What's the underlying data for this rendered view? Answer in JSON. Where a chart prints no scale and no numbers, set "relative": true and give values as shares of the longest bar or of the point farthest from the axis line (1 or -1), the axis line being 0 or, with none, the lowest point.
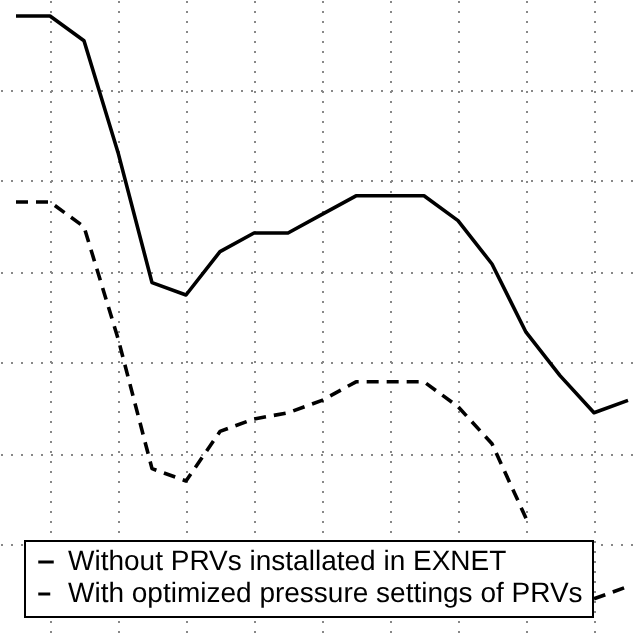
{
  "chart_data": {
    "type": "line",
    "relative": true,
    "grid": true,
    "legend": "bottom left",
    "tick_labels": false,
    "categories": [
      null,
      null,
      null,
      null,
      null,
      null,
      null,
      null,
      null,
      null,
      null,
      null,
      null,
      null,
      null,
      null,
      null,
      null,
      null
    ],
    "series": [
      {
        "name": "Without PRVs installated in EXNET",
        "color": "#000000",
        "line_style": "solid",
        "values": [
          1.0,
          1.0,
          0.96,
          0.78,
          0.57,
          0.55,
          0.62,
          0.65,
          0.65,
          0.68,
          0.71,
          0.71,
          0.71,
          0.67,
          0.6,
          0.49,
          0.42,
          0.36,
          0.38
        ]
      },
      {
        "name": "With optimized pressure settings of PRVs",
        "color": "#000000",
        "line_style": "dashed",
        "values": [
          0.7,
          0.7,
          0.66,
          0.48,
          0.27,
          0.25,
          0.33,
          0.35,
          0.36,
          0.38,
          0.41,
          0.41,
          0.41,
          0.37,
          0.31,
          0.19,
          null,
          0.06,
          0.08
        ]
      }
    ]
  }
}
